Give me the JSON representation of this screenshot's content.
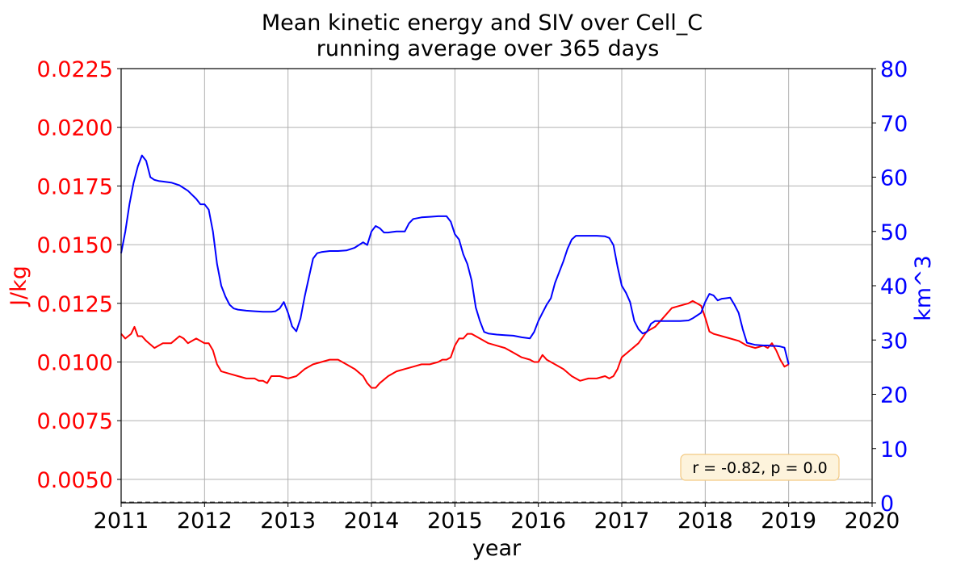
{
  "chart_data": {
    "type": "line",
    "title": "Mean kinetic energy and SIV over Cell_C",
    "subtitle": "running average over 365 days",
    "xlabel": "year",
    "ylabel_left": "J/kg",
    "ylabel_right": "km^3",
    "xlim": [
      2011,
      2020
    ],
    "ylim_left": [
      0.004,
      0.0225
    ],
    "ylim_right": [
      0,
      80
    ],
    "x_ticks": [
      "2011",
      "2012",
      "2013",
      "2014",
      "2015",
      "2016",
      "2017",
      "2018",
      "2019",
      "2020"
    ],
    "y_left_ticks": [
      "0.0050",
      "0.0075",
      "0.0100",
      "0.0125",
      "0.0150",
      "0.0175",
      "0.0200",
      "0.0225"
    ],
    "y_right_ticks": [
      "0",
      "10",
      "20",
      "30",
      "40",
      "50",
      "60",
      "70",
      "80"
    ],
    "grid": true,
    "annotation": "r = -0.82, p = 0.0",
    "annotation_position": "bottom-right",
    "zero_line": "dashed",
    "series": [
      {
        "axis": "left",
        "color": "#ff0000",
        "x": [
          2011.0,
          2011.05,
          2011.12,
          2011.16,
          2011.2,
          2011.25,
          2011.3,
          2011.4,
          2011.5,
          2011.6,
          2011.7,
          2011.75,
          2011.8,
          2011.9,
          2012.0,
          2012.05,
          2012.1,
          2012.15,
          2012.2,
          2012.3,
          2012.4,
          2012.5,
          2012.6,
          2012.65,
          2012.7,
          2012.75,
          2012.8,
          2012.9,
          2013.0,
          2013.1,
          2013.2,
          2013.3,
          2013.4,
          2013.5,
          2013.6,
          2013.7,
          2013.8,
          2013.9,
          2013.95,
          2014.0,
          2014.05,
          2014.1,
          2014.2,
          2014.3,
          2014.4,
          2014.5,
          2014.6,
          2014.7,
          2014.8,
          2014.85,
          2014.9,
          2014.95,
          2015.0,
          2015.05,
          2015.1,
          2015.15,
          2015.2,
          2015.3,
          2015.4,
          2015.5,
          2015.6,
          2015.7,
          2015.8,
          2015.9,
          2015.95,
          2016.0,
          2016.05,
          2016.1,
          2016.2,
          2016.3,
          2016.4,
          2016.5,
          2016.6,
          2016.7,
          2016.8,
          2016.85,
          2016.9,
          2016.95,
          2017.0,
          2017.1,
          2017.2,
          2017.3,
          2017.4,
          2017.5,
          2017.6,
          2017.7,
          2017.8,
          2017.85,
          2017.9,
          2017.95,
          2018.0,
          2018.05,
          2018.1,
          2018.2,
          2018.3,
          2018.4,
          2018.5,
          2018.6,
          2018.7,
          2018.75,
          2018.8,
          2018.85,
          2018.9,
          2018.95,
          2019.0
        ],
        "y": [
          0.0112,
          0.011,
          0.0112,
          0.0115,
          0.0111,
          0.0111,
          0.0109,
          0.0106,
          0.0108,
          0.0108,
          0.0111,
          0.011,
          0.0108,
          0.011,
          0.0108,
          0.0108,
          0.0105,
          0.0099,
          0.0096,
          0.0095,
          0.0094,
          0.0093,
          0.0093,
          0.0092,
          0.0092,
          0.0091,
          0.0094,
          0.0094,
          0.0093,
          0.0094,
          0.0097,
          0.0099,
          0.01,
          0.0101,
          0.0101,
          0.0099,
          0.0097,
          0.0094,
          0.0091,
          0.0089,
          0.0089,
          0.0091,
          0.0094,
          0.0096,
          0.0097,
          0.0098,
          0.0099,
          0.0099,
          0.01,
          0.0101,
          0.0101,
          0.0102,
          0.0107,
          0.011,
          0.011,
          0.0112,
          0.0112,
          0.011,
          0.0108,
          0.0107,
          0.0106,
          0.0104,
          0.0102,
          0.0101,
          0.01,
          0.01,
          0.0103,
          0.0101,
          0.0099,
          0.0097,
          0.0094,
          0.0092,
          0.0093,
          0.0093,
          0.0094,
          0.0093,
          0.0094,
          0.0097,
          0.0102,
          0.0105,
          0.0108,
          0.0113,
          0.0115,
          0.0119,
          0.0123,
          0.0124,
          0.0125,
          0.0126,
          0.0125,
          0.0124,
          0.0119,
          0.0113,
          0.0112,
          0.0111,
          0.011,
          0.0109,
          0.0107,
          0.0106,
          0.0107,
          0.0106,
          0.0108,
          0.0105,
          0.0101,
          0.0098,
          0.0099
        ]
      },
      {
        "axis": "right",
        "color": "#0000ff",
        "x": [
          2011.0,
          2011.05,
          2011.1,
          2011.15,
          2011.2,
          2011.25,
          2011.3,
          2011.35,
          2011.4,
          2011.45,
          2011.5,
          2011.6,
          2011.7,
          2011.8,
          2011.9,
          2011.95,
          2012.0,
          2012.05,
          2012.1,
          2012.15,
          2012.2,
          2012.25,
          2012.3,
          2012.35,
          2012.4,
          2012.5,
          2012.6,
          2012.7,
          2012.8,
          2012.85,
          2012.9,
          2012.95,
          2013.0,
          2013.05,
          2013.1,
          2013.15,
          2013.2,
          2013.25,
          2013.3,
          2013.35,
          2013.4,
          2013.5,
          2013.6,
          2013.7,
          2013.8,
          2013.9,
          2013.95,
          2014.0,
          2014.05,
          2014.1,
          2014.15,
          2014.2,
          2014.25,
          2014.3,
          2014.35,
          2014.4,
          2014.45,
          2014.5,
          2014.6,
          2014.7,
          2014.8,
          2014.85,
          2014.9,
          2014.95,
          2015.0,
          2015.05,
          2015.1,
          2015.15,
          2015.2,
          2015.25,
          2015.3,
          2015.35,
          2015.4,
          2015.5,
          2015.6,
          2015.7,
          2015.8,
          2015.9,
          2015.95,
          2016.0,
          2016.05,
          2016.1,
          2016.15,
          2016.2,
          2016.25,
          2016.3,
          2016.35,
          2016.4,
          2016.45,
          2016.5,
          2016.6,
          2016.7,
          2016.8,
          2016.85,
          2016.9,
          2016.95,
          2017.0,
          2017.05,
          2017.1,
          2017.15,
          2017.2,
          2017.25,
          2017.3,
          2017.35,
          2017.4,
          2017.5,
          2017.6,
          2017.7,
          2017.8,
          2017.85,
          2017.9,
          2017.95,
          2018.0,
          2018.05,
          2018.1,
          2018.15,
          2018.2,
          2018.25,
          2018.3,
          2018.35,
          2018.4,
          2018.45,
          2018.5,
          2018.6,
          2018.7,
          2018.75,
          2018.8,
          2018.85,
          2018.9,
          2018.95,
          2019.0
        ],
        "y": [
          46,
          50,
          55,
          59,
          62,
          64,
          63,
          60,
          59.5,
          59.3,
          59.2,
          59,
          58.5,
          57.5,
          56,
          55,
          55,
          54,
          50,
          44,
          40,
          38,
          36.5,
          35.8,
          35.6,
          35.4,
          35.3,
          35.2,
          35.2,
          35.3,
          35.8,
          37,
          35,
          32.5,
          31.6,
          34,
          38,
          41.5,
          45,
          46,
          46.2,
          46.4,
          46.4,
          46.5,
          47,
          48,
          47.5,
          50,
          51,
          50.6,
          49.8,
          49.8,
          49.9,
          50,
          50,
          50,
          51.5,
          52.3,
          52.6,
          52.7,
          52.8,
          52.8,
          52.8,
          51.8,
          49.5,
          48.5,
          45.8,
          44,
          41,
          36,
          33.5,
          31.5,
          31.2,
          31.0,
          30.9,
          30.8,
          30.5,
          30.3,
          31.5,
          33.5,
          35,
          36.5,
          37.7,
          40.5,
          42.5,
          44.5,
          46.8,
          48.5,
          49.2,
          49.2,
          49.2,
          49.2,
          49.1,
          48.8,
          47.5,
          43.5,
          40,
          38.7,
          37,
          33.5,
          32,
          31.2,
          31.5,
          33,
          33.5,
          33.5,
          33.5,
          33.5,
          33.6,
          34,
          34.5,
          35,
          37,
          38.5,
          38.2,
          37.3,
          37.6,
          37.7,
          37.8,
          36.5,
          35,
          32,
          29.5,
          29.1,
          29.0,
          29.0,
          28.9,
          28.9,
          28.8,
          28.6,
          25.5
        ]
      }
    ]
  }
}
